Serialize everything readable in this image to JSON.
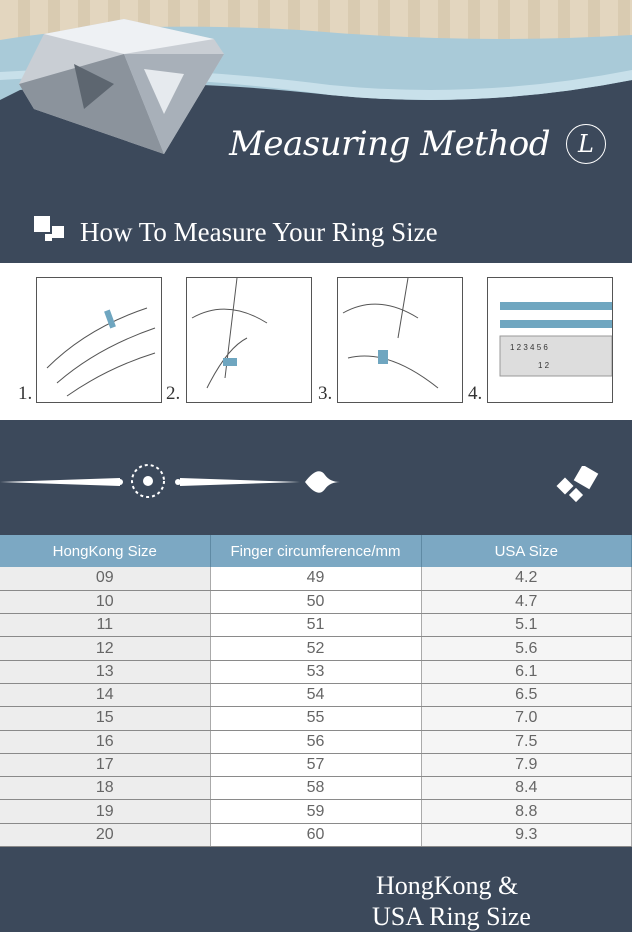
{
  "header": {
    "title": "Measuring Method",
    "logo_letter": "L",
    "subtitle": "How To Measure Your Ring Size"
  },
  "steps": [
    {
      "number": "1."
    },
    {
      "number": "2."
    },
    {
      "number": "3."
    },
    {
      "number": "4."
    }
  ],
  "ruler": {
    "top_marks": [
      "1",
      "2",
      "3",
      "4",
      "5",
      "6"
    ],
    "bottom_marks": [
      "1",
      "2"
    ]
  },
  "size_section": {
    "title_line1": "HongKong  &",
    "title_line2": "USA Ring Size"
  },
  "table": {
    "headers": [
      "HongKong Size",
      "Finger circumference/mm",
      "USA Size"
    ],
    "rows": [
      [
        "09",
        "49",
        "4.2"
      ],
      [
        "10",
        "50",
        "4.7"
      ],
      [
        "11",
        "51",
        "5.1"
      ],
      [
        "12",
        "52",
        "5.6"
      ],
      [
        "13",
        "53",
        "6.1"
      ],
      [
        "14",
        "54",
        "6.5"
      ],
      [
        "15",
        "55",
        "7.0"
      ],
      [
        "16",
        "56",
        "7.5"
      ],
      [
        "17",
        "57",
        "7.9"
      ],
      [
        "18",
        "58",
        "8.4"
      ],
      [
        "19",
        "59",
        "8.8"
      ],
      [
        "20",
        "60",
        "9.3"
      ]
    ]
  },
  "colors": {
    "background": "#3c495b",
    "table_header": "#7ca8c3",
    "ribbon": "#a9cad8",
    "ring_band": "#6fa6c0"
  }
}
